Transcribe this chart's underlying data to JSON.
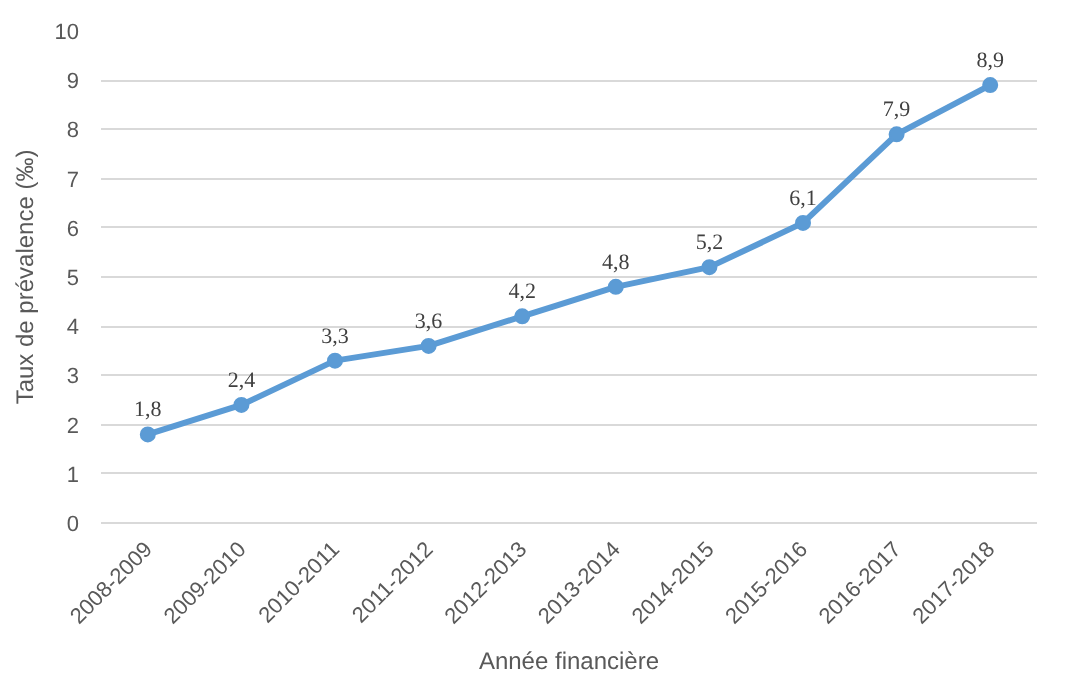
{
  "chart_data": {
    "type": "line",
    "xlabel": "Année financière",
    "ylabel": "Taux de prévalence (‰)",
    "categories": [
      "2008-2009",
      "2009-2010",
      "2010-2011",
      "2011-2012",
      "2012-2013",
      "2013-2014",
      "2014-2015",
      "2015-2016",
      "2016-2017",
      "2017-2018"
    ],
    "values": [
      1.8,
      2.4,
      3.3,
      3.6,
      4.2,
      4.8,
      5.2,
      6.1,
      7.9,
      8.9
    ],
    "value_labels": [
      "1,8",
      "2,4",
      "3,3",
      "3,6",
      "4,2",
      "4,8",
      "5,2",
      "6,1",
      "7,9",
      "8,9"
    ],
    "color": "#5b9bd5",
    "marker": "circle",
    "line_style": "solid",
    "ylim": [
      0,
      10
    ],
    "yticks": [
      0,
      1,
      2,
      3,
      4,
      5,
      6,
      7,
      8,
      9,
      10
    ],
    "grid": "y"
  }
}
